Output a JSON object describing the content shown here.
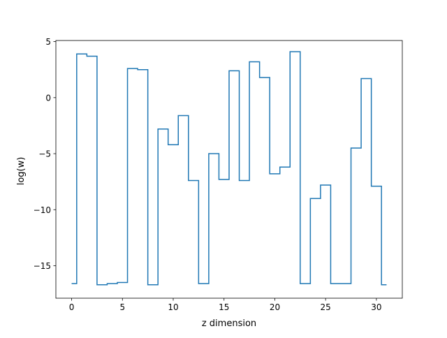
{
  "chart_data": {
    "type": "line",
    "drawstyle": "steps-mid",
    "title": "",
    "xlabel": "z dimension",
    "ylabel": "log(w)",
    "xlim": [
      -1.55,
      32.55
    ],
    "ylim": [
      -17.9,
      5.1
    ],
    "grid": false,
    "legend": "none",
    "x_ticks": [
      0,
      5,
      10,
      15,
      20,
      25,
      30
    ],
    "x_tick_labels": [
      "0",
      "5",
      "10",
      "15",
      "20",
      "25",
      "30"
    ],
    "y_ticks": [
      5,
      0,
      -5,
      -10,
      -15
    ],
    "y_tick_labels": [
      "5",
      "0",
      "−5",
      "−10",
      "−15"
    ],
    "series": [
      {
        "color": "#1f77b4",
        "x": [
          0,
          1,
          2,
          3,
          4,
          5,
          6,
          7,
          8,
          9,
          10,
          11,
          12,
          13,
          14,
          15,
          16,
          17,
          18,
          19,
          20,
          21,
          22,
          23,
          24,
          25,
          26,
          27,
          28,
          29,
          30,
          31
        ],
        "values": [
          -16.6,
          3.9,
          3.7,
          -16.7,
          -16.6,
          -16.5,
          2.6,
          2.5,
          -16.7,
          -2.8,
          -4.2,
          -1.6,
          -7.4,
          -16.6,
          -5.0,
          -7.3,
          2.4,
          -7.4,
          3.2,
          1.8,
          -6.8,
          -6.2,
          4.1,
          -16.6,
          -9.0,
          -7.8,
          -16.6,
          -16.6,
          -4.5,
          1.7,
          -7.9,
          -16.7
        ]
      }
    ]
  }
}
